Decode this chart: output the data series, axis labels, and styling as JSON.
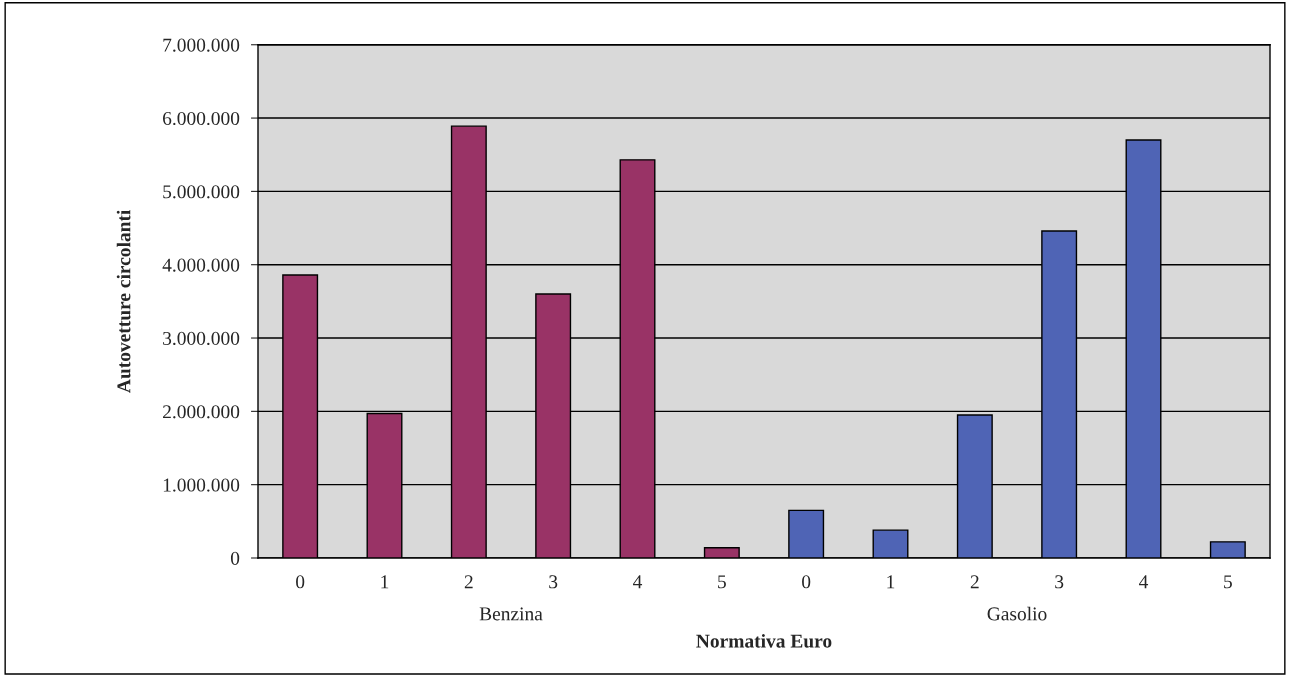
{
  "chart_data": {
    "type": "bar",
    "xlabel": "Normativa Euro",
    "ylabel": "Autovetture circolanti",
    "categories": [
      "0",
      "1",
      "2",
      "3",
      "4",
      "5",
      "0",
      "1",
      "2",
      "3",
      "4",
      "5"
    ],
    "values": [
      3860000,
      1970000,
      5890000,
      3600000,
      5430000,
      140000,
      650000,
      380000,
      1950000,
      4460000,
      5700000,
      220000
    ],
    "colors": [
      "#993366",
      "#993366",
      "#993366",
      "#993366",
      "#993366",
      "#993366",
      "#4f64b5",
      "#4f64b5",
      "#4f64b5",
      "#4f64b5",
      "#4f64b5",
      "#4f64b5"
    ],
    "annotations": [
      "Benzina",
      "Gasolio"
    ],
    "ylim": [
      0,
      7000000
    ],
    "yticks": [
      0,
      {
        "value": 1000000,
        "label": "1.000.000"
      },
      {
        "value": 2000000,
        "label": "2.000.000"
      },
      {
        "value": 3000000,
        "label": "3.000.000"
      },
      {
        "value": 4000000,
        "label": "4.000.000"
      },
      {
        "value": 5000000,
        "label": "5.000.000"
      },
      {
        "value": 6000000,
        "label": "6.000.000"
      },
      {
        "value": 7000000,
        "label": "7.000.000"
      }
    ],
    "grid": "y"
  }
}
